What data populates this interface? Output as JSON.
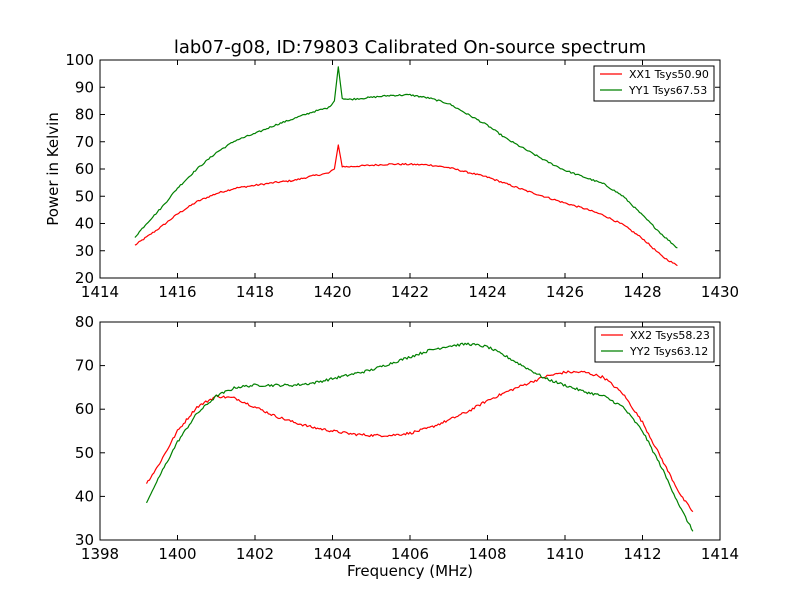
{
  "figure": {
    "title": "lab07-g08, ID:79803 Calibrated On-source spectrum",
    "xlabel": "Frequency (MHz)",
    "ylabel": "Power in Kelvin"
  },
  "chart_data": [
    {
      "type": "line",
      "title": "lab07-g08, ID:79803 Calibrated On-source spectrum",
      "xlabel": "",
      "ylabel": "Power in Kelvin",
      "xlim": [
        1414,
        1430
      ],
      "ylim": [
        20,
        100
      ],
      "xticks": [
        "1414",
        "1416",
        "1418",
        "1420",
        "1422",
        "1424",
        "1426",
        "1428",
        "1430"
      ],
      "yticks": [
        "20",
        "30",
        "40",
        "50",
        "60",
        "70",
        "80",
        "90",
        "100"
      ],
      "legend": "top-right",
      "grid": false,
      "series": [
        {
          "name": "XX1 Tsys50.90",
          "color": "#ff0000",
          "x": [
            1414.9,
            1415.2,
            1415.6,
            1416.0,
            1416.5,
            1417.0,
            1417.5,
            1418.0,
            1418.5,
            1419.0,
            1419.5,
            1419.9,
            1420.05,
            1420.15,
            1420.25,
            1420.4,
            1420.8,
            1421.5,
            1422.0,
            1422.5,
            1423.0,
            1424.0,
            1425.0,
            1426.0,
            1426.5,
            1427.0,
            1427.5,
            1428.0,
            1428.5,
            1428.9
          ],
          "values": [
            32,
            35,
            39,
            43.5,
            48,
            51,
            53,
            54,
            55,
            55.8,
            57.5,
            58.5,
            60,
            68.8,
            61,
            60.8,
            61.2,
            61.8,
            61.7,
            61.5,
            60.5,
            57,
            52,
            47.5,
            45.5,
            43,
            39.5,
            34.5,
            28,
            24.5
          ]
        },
        {
          "name": "YY1 Tsys67.53",
          "color": "#008000",
          "x": [
            1414.9,
            1415.2,
            1415.6,
            1416.0,
            1416.5,
            1417.0,
            1417.5,
            1418.0,
            1418.5,
            1419.0,
            1419.5,
            1419.9,
            1420.05,
            1420.15,
            1420.25,
            1420.4,
            1420.8,
            1421.5,
            1422.0,
            1422.5,
            1423.0,
            1423.5,
            1424.0,
            1424.5,
            1425.0,
            1425.5,
            1426.0,
            1426.5,
            1427.0,
            1427.5,
            1428.0,
            1428.5,
            1428.9
          ],
          "values": [
            35,
            40,
            46,
            53,
            60,
            66,
            70.5,
            73,
            76,
            78.5,
            81,
            82.5,
            85,
            97.5,
            86,
            85.5,
            86,
            87,
            87.2,
            86,
            84,
            80,
            76,
            71,
            67,
            63,
            59.5,
            57,
            54.5,
            50,
            43,
            36,
            31
          ]
        }
      ]
    },
    {
      "type": "line",
      "title": "",
      "xlabel": "Frequency (MHz)",
      "ylabel": "",
      "xlim": [
        1398,
        1414
      ],
      "ylim": [
        30,
        80
      ],
      "xticks": [
        "1398",
        "1400",
        "1402",
        "1404",
        "1406",
        "1408",
        "1410",
        "1412",
        "1414"
      ],
      "yticks": [
        "30",
        "40",
        "50",
        "60",
        "70",
        "80"
      ],
      "legend": "top-right",
      "grid": false,
      "series": [
        {
          "name": "XX2 Tsys58.23",
          "color": "#ff0000",
          "x": [
            1399.2,
            1399.5,
            1400.0,
            1400.5,
            1401.0,
            1401.5,
            1402.0,
            1402.5,
            1403.0,
            1403.5,
            1404.0,
            1404.5,
            1405.0,
            1405.5,
            1406.0,
            1406.5,
            1407.0,
            1407.5,
            1408.0,
            1408.5,
            1409.0,
            1409.5,
            1410.0,
            1410.5,
            1411.0,
            1411.5,
            1412.0,
            1412.5,
            1413.0,
            1413.3
          ],
          "values": [
            43,
            47,
            55,
            60.5,
            63,
            62.5,
            60.5,
            58.5,
            57,
            55.8,
            55,
            54.3,
            54,
            54,
            54.5,
            55.7,
            57.5,
            59.5,
            62,
            64,
            65.8,
            67.5,
            68.5,
            68.5,
            67.3,
            63.5,
            57,
            48.5,
            40,
            36.5
          ]
        },
        {
          "name": "YY2 Tsys63.12",
          "color": "#008000",
          "x": [
            1399.2,
            1399.5,
            1400.0,
            1400.5,
            1401.0,
            1401.5,
            1402.0,
            1402.5,
            1403.0,
            1403.5,
            1404.0,
            1404.5,
            1405.0,
            1405.5,
            1406.0,
            1406.5,
            1407.0,
            1407.5,
            1408.0,
            1408.5,
            1409.0,
            1409.5,
            1410.0,
            1410.5,
            1411.0,
            1411.5,
            1412.0,
            1412.5,
            1413.0,
            1413.3
          ],
          "values": [
            38.5,
            44,
            52.5,
            59,
            63,
            65,
            65.5,
            65.5,
            65.5,
            66,
            67,
            68,
            69,
            70.5,
            72,
            73.5,
            74.5,
            75,
            74.3,
            72,
            69.5,
            67,
            65.5,
            64,
            63,
            60.5,
            55,
            46.5,
            37,
            32
          ]
        }
      ]
    }
  ]
}
